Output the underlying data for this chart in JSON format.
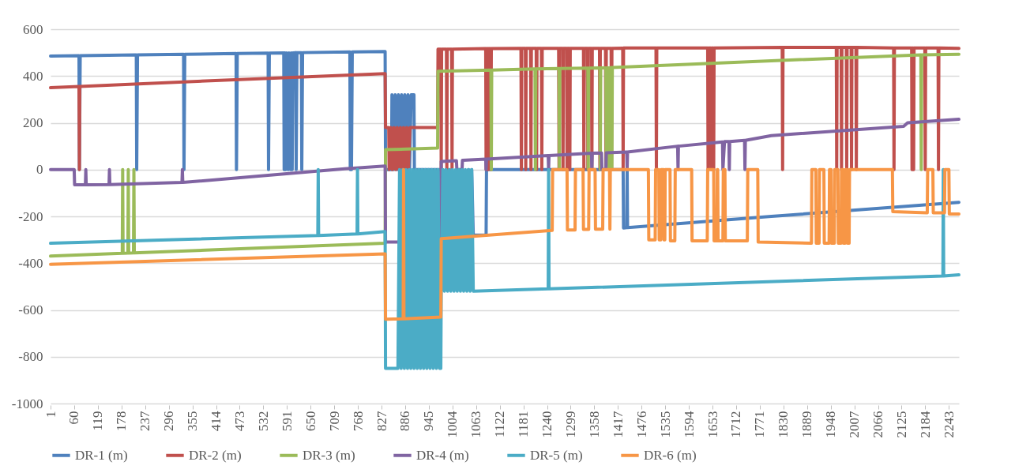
{
  "chart_data": {
    "type": "line",
    "xlim": [
      1,
      2268
    ],
    "ylim": [
      -1000,
      600
    ],
    "xticks": [
      1,
      60,
      119,
      178,
      237,
      296,
      355,
      414,
      473,
      532,
      591,
      650,
      709,
      768,
      827,
      886,
      945,
      1004,
      1063,
      1122,
      1181,
      1240,
      1299,
      1358,
      1417,
      1476,
      1535,
      1594,
      1653,
      1712,
      1771,
      1830,
      1889,
      1948,
      2007,
      2066,
      2125,
      2184,
      2243
    ],
    "yticks": [
      -1000,
      -800,
      -600,
      -400,
      -200,
      0,
      200,
      400,
      600
    ],
    "grid": "y",
    "legend": "bottom",
    "marker": "none",
    "line_style": "solid",
    "series": [
      {
        "name": "DR-1 (m)",
        "color": "#4f81bd",
        "x": [
          1,
          72,
          73,
          75,
          215,
          216,
          218,
          333,
          334,
          336,
          464,
          465,
          467,
          544,
          545,
          547,
          583,
          584,
          586,
          588,
          590,
          594,
          596,
          600,
          602,
          604,
          606,
          613,
          614,
          616,
          627,
          628,
          630,
          748,
          749,
          752,
          754,
          836,
          837,
          852,
          853,
          857,
          861,
          865,
          869,
          873,
          877,
          881,
          885,
          889,
          893,
          897,
          901,
          908,
          909,
          975,
          976,
          980,
          984,
          988,
          992,
          996,
          1000,
          1040,
          1044,
          1048,
          1052,
          1056,
          1088,
          1089,
          1430,
          1431,
          1439,
          1440,
          1441,
          1800,
          2268
        ],
        "values": [
          485,
          487,
          0,
          487,
          490,
          0,
          490,
          493,
          0,
          493,
          496,
          0,
          496,
          498,
          0,
          498,
          499,
          0,
          499,
          0,
          499,
          0,
          499,
          0,
          499,
          0,
          499,
          500,
          0,
          500,
          500,
          0,
          500,
          503,
          0,
          0,
          503,
          505,
          0,
          0,
          320,
          0,
          320,
          0,
          320,
          0,
          320,
          0,
          320,
          0,
          320,
          0,
          320,
          320,
          0,
          0,
          -280,
          0,
          -280,
          0,
          -280,
          0,
          -280,
          -280,
          0,
          -280,
          0,
          -280,
          -280,
          0,
          0,
          -250,
          -248,
          0,
          -248,
          -200,
          -140
        ]
      },
      {
        "name": "DR-2 (m)",
        "color": "#c0504d",
        "x": [
          1,
          72,
          73,
          74,
          400,
          836,
          837,
          845,
          846,
          850,
          854,
          858,
          862,
          866,
          870,
          874,
          878,
          882,
          886,
          890,
          894,
          898,
          967,
          968,
          975,
          976,
          977,
          989,
          990,
          991,
          1002,
          1003,
          1004,
          1087,
          1088,
          1089,
          1092,
          1093,
          1094,
          1099,
          1100,
          1101,
          1175,
          1176,
          1177,
          1186,
          1187,
          1188,
          1199,
          1200,
          1201,
          1213,
          1214,
          1215,
          1226,
          1227,
          1228,
          1269,
          1270,
          1271,
          1279,
          1280,
          1281,
          1289,
          1290,
          1291,
          1296,
          1297,
          1298,
          1331,
          1332,
          1333,
          1341,
          1342,
          1343,
          1351,
          1352,
          1353,
          1371,
          1372,
          1373,
          1386,
          1387,
          1388,
          1400,
          1401,
          1402,
          1429,
          1430,
          1431,
          1512,
          1513,
          1514,
          1641,
          1642,
          1643,
          1649,
          1650,
          1651,
          1655,
          1656,
          1657,
          1827,
          1828,
          1829,
          1962,
          1963,
          1964,
          1974,
          1975,
          1976,
          1987,
          1988,
          1989,
          1999,
          2000,
          2001,
          2011,
          2012,
          2013,
          2105,
          2106,
          2107,
          2150,
          2151,
          2152,
          2154,
          2155,
          2156,
          2183,
          2184,
          2185,
          2216,
          2217,
          2218,
          2268
        ],
        "values": [
          350,
          355,
          0,
          355,
          380,
          410,
          180,
          180,
          0,
          180,
          0,
          180,
          0,
          180,
          0,
          180,
          0,
          180,
          0,
          180,
          0,
          180,
          180,
          515,
          515,
          0,
          515,
          515,
          0,
          515,
          515,
          0,
          515,
          517,
          0,
          517,
          517,
          0,
          517,
          517,
          0,
          517,
          518,
          0,
          518,
          518,
          0,
          518,
          518,
          0,
          518,
          518,
          0,
          518,
          518,
          0,
          518,
          518,
          0,
          518,
          518,
          0,
          518,
          518,
          0,
          518,
          518,
          0,
          518,
          518,
          0,
          518,
          518,
          0,
          518,
          518,
          0,
          518,
          518,
          0,
          518,
          518,
          0,
          518,
          518,
          0,
          518,
          519,
          0,
          520,
          520,
          0,
          520,
          520,
          0,
          520,
          520,
          0,
          520,
          520,
          0,
          520,
          522,
          0,
          522,
          522,
          0,
          522,
          522,
          0,
          522,
          522,
          0,
          522,
          522,
          0,
          522,
          522,
          0,
          522,
          520,
          0,
          520,
          520,
          0,
          520,
          520,
          0,
          520,
          520,
          0,
          520,
          520,
          0,
          520,
          518
        ]
      },
      {
        "name": "DR-3 (m)",
        "color": "#9bbb59",
        "x": [
          1,
          180,
          181,
          182,
          194,
          195,
          196,
          208,
          209,
          210,
          500,
          836,
          837,
          967,
          968,
          1100,
          1101,
          1102,
          1210,
          1211,
          1212,
          1270,
          1271,
          1272,
          1342,
          1343,
          1344,
          1372,
          1373,
          1374,
          1387,
          1388,
          1389,
          1395,
          1396,
          1397,
          1401,
          1402,
          1403,
          1800,
          2173,
          2174,
          2175,
          2268
        ],
        "values": [
          -370,
          -358,
          0,
          -358,
          -357,
          0,
          -357,
          -356,
          0,
          -356,
          -337,
          -315,
          85,
          92,
          420,
          425,
          0,
          425,
          430,
          0,
          430,
          432,
          0,
          432,
          434,
          0,
          434,
          435,
          0,
          435,
          435,
          0,
          435,
          435,
          0,
          435,
          436,
          0,
          436,
          465,
          490,
          0,
          490,
          493
        ]
      },
      {
        "name": "DR-4 (m)",
        "color": "#8064a2",
        "x": [
          1,
          60,
          61,
          88,
          89,
          90,
          147,
          148,
          149,
          329,
          330,
          331,
          735,
          836,
          837,
          975,
          976,
          1014,
          1015,
          1028,
          1029,
          1087,
          1088,
          1089,
          1243,
          1244,
          1245,
          1351,
          1352,
          1353,
          1376,
          1377,
          1387,
          1388,
          1439,
          1440,
          1441,
          1566,
          1567,
          1568,
          1678,
          1679,
          1683,
          1694,
          1695,
          1696,
          1733,
          1734,
          1735,
          1800,
          2130,
          2140,
          2268
        ],
        "values": [
          0,
          0,
          -65,
          -65,
          0,
          -65,
          -64,
          0,
          -64,
          -55,
          0,
          -55,
          3,
          15,
          -310,
          -310,
          35,
          38,
          0,
          0,
          40,
          45,
          0,
          45,
          60,
          0,
          60,
          70,
          0,
          70,
          71,
          0,
          0,
          72,
          75,
          0,
          75,
          100,
          0,
          100,
          118,
          0,
          120,
          120,
          0,
          120,
          125,
          0,
          125,
          145,
          185,
          200,
          215
        ]
      },
      {
        "name": "DR-5 (m)",
        "color": "#4bacc6",
        "x": [
          1,
          668,
          669,
          670,
          766,
          767,
          768,
          836,
          837,
          868,
          872,
          876,
          880,
          884,
          888,
          892,
          896,
          900,
          904,
          908,
          912,
          916,
          920,
          924,
          928,
          932,
          936,
          940,
          944,
          948,
          952,
          956,
          960,
          964,
          968,
          972,
          975,
          976,
          980,
          984,
          988,
          992,
          996,
          1000,
          1004,
          1008,
          1012,
          1016,
          1020,
          1024,
          1028,
          1032,
          1036,
          1040,
          1044,
          1048,
          1052,
          1056,
          1243,
          1244,
          1245,
          2228,
          2229,
          2230,
          2268
        ],
        "values": [
          -315,
          -282,
          0,
          -282,
          -275,
          0,
          -275,
          -265,
          -850,
          -850,
          0,
          -850,
          0,
          -850,
          0,
          -850,
          0,
          -850,
          0,
          -850,
          0,
          -850,
          0,
          -850,
          0,
          -850,
          0,
          -850,
          0,
          -850,
          0,
          -850,
          0,
          -850,
          0,
          -850,
          -850,
          -520,
          0,
          -520,
          0,
          -520,
          0,
          -520,
          0,
          -520,
          0,
          -520,
          0,
          -520,
          0,
          -520,
          0,
          -520,
          0,
          -520,
          0,
          -520,
          -510,
          0,
          -510,
          -455,
          0,
          -455,
          -450
        ]
      },
      {
        "name": "DR-6 (m)",
        "color": "#f79646",
        "x": [
          1,
          836,
          837,
          881,
          882,
          883,
          975,
          976,
          1253,
          1254,
          1290,
          1291,
          1310,
          1311,
          1330,
          1331,
          1344,
          1345,
          1360,
          1361,
          1379,
          1380,
          1396,
          1397,
          1398,
          1493,
          1494,
          1510,
          1511,
          1519,
          1520,
          1524,
          1525,
          1531,
          1532,
          1534,
          1535,
          1547,
          1548,
          1559,
          1560,
          1601,
          1602,
          1640,
          1641,
          1656,
          1657,
          1664,
          1665,
          1666,
          1667,
          1679,
          1680,
          1684,
          1685,
          1740,
          1741,
          1766,
          1767,
          1900,
          1901,
          1911,
          1912,
          1919,
          1920,
          1931,
          1932,
          1944,
          1945,
          1949,
          1950,
          1957,
          1958,
          1966,
          1967,
          1974,
          1975,
          1979,
          1980,
          1984,
          1985,
          1989,
          1990,
          1994,
          1995,
          2102,
          2103,
          2189,
          2190,
          2203,
          2204,
          2232,
          2233,
          2243,
          2244,
          2268
        ],
        "values": [
          -405,
          -360,
          -640,
          -638,
          0,
          -638,
          -630,
          -295,
          -260,
          0,
          0,
          -258,
          -258,
          0,
          0,
          -256,
          -256,
          0,
          0,
          -255,
          -255,
          0,
          0,
          -255,
          0,
          0,
          -300,
          -300,
          0,
          0,
          -300,
          -300,
          0,
          0,
          -300,
          -300,
          0,
          0,
          -305,
          -305,
          0,
          0,
          -305,
          -305,
          0,
          0,
          -305,
          -305,
          0,
          0,
          -305,
          -305,
          0,
          0,
          -305,
          -305,
          0,
          0,
          -310,
          -315,
          0,
          0,
          -315,
          -315,
          0,
          0,
          -315,
          -315,
          0,
          0,
          -315,
          -315,
          0,
          0,
          -315,
          -315,
          0,
          0,
          -315,
          -315,
          0,
          0,
          -315,
          -315,
          0,
          0,
          -180,
          -185,
          0,
          0,
          -185,
          -185,
          0,
          0,
          -190,
          -190
        ]
      }
    ]
  }
}
